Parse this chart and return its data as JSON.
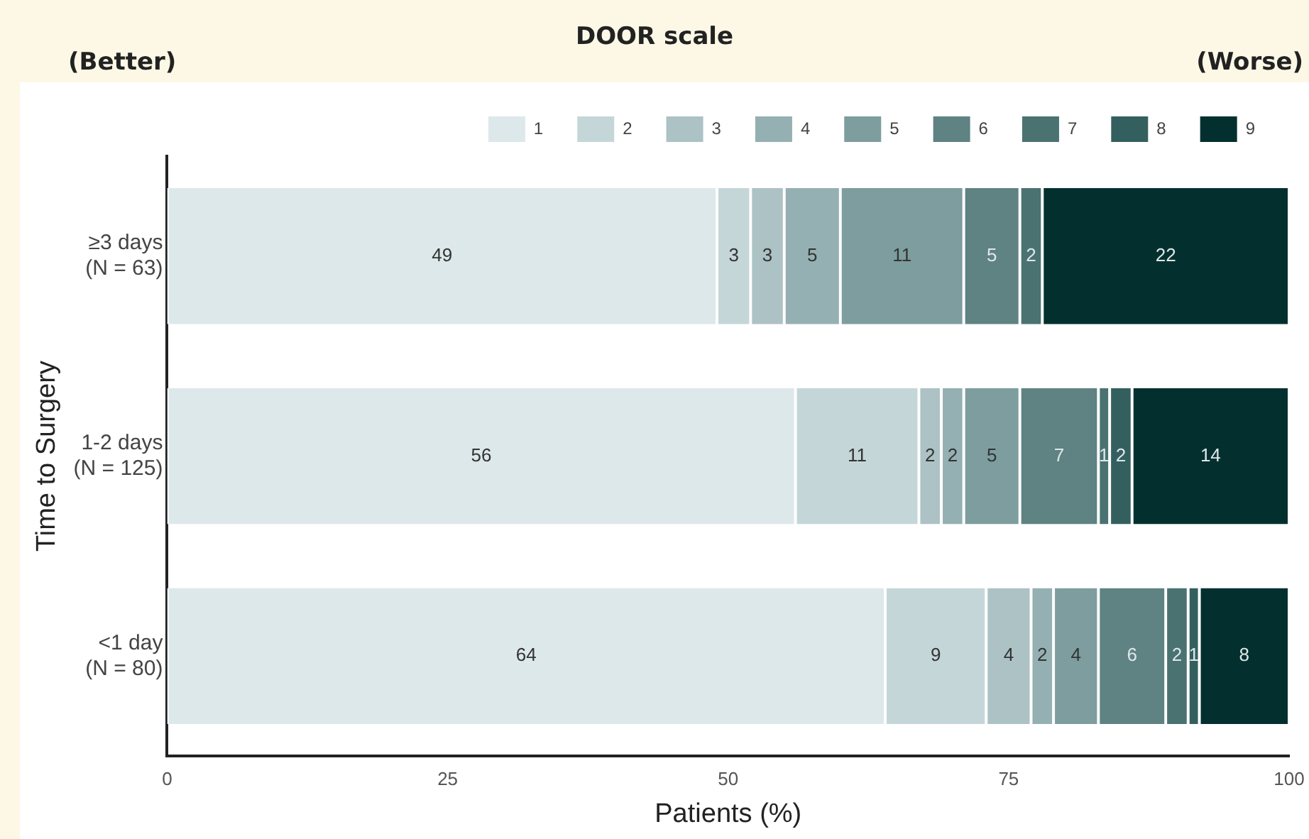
{
  "chart_data": {
    "type": "bar",
    "orientation": "horizontal",
    "stacked": true,
    "legend_title": "DOOR scale",
    "annotations": [
      "(Better)",
      "(Worse)"
    ],
    "categories": [
      "≥3 days\n(N = 63)",
      "1-2 days\n(N = 125)",
      "<1 day\n(N = 80)"
    ],
    "series": [
      {
        "name": "1",
        "color": "#dde8ea",
        "values": [
          49,
          56,
          64
        ],
        "value_labels": [
          "49",
          "56",
          "64"
        ]
      },
      {
        "name": "2",
        "color": "#c5d6d8",
        "values": [
          3,
          11,
          9
        ],
        "value_labels": [
          "3",
          "11",
          "9"
        ]
      },
      {
        "name": "3",
        "color": "#acc2c4",
        "values": [
          3,
          2,
          4
        ],
        "value_labels": [
          "3",
          "2",
          "4"
        ]
      },
      {
        "name": "4",
        "color": "#95b0b2",
        "values": [
          5,
          2,
          2
        ],
        "value_labels": [
          "5",
          "2",
          "2"
        ]
      },
      {
        "name": "5",
        "color": "#7d9d9e",
        "values": [
          11,
          5,
          4
        ],
        "value_labels": [
          "11",
          "5",
          "4"
        ]
      },
      {
        "name": "6",
        "color": "#5f8283",
        "values": [
          5,
          7,
          6
        ],
        "value_labels": [
          "5",
          "7",
          "6"
        ]
      },
      {
        "name": "7",
        "color": "#4a7271",
        "values": [
          2,
          1,
          2
        ],
        "value_labels": [
          "2",
          "1",
          "2"
        ]
      },
      {
        "name": "8",
        "color": "#33605f",
        "values": [
          0,
          2,
          1
        ],
        "value_labels": [
          null,
          "2",
          "1"
        ]
      },
      {
        "name": "9",
        "color": "#03302f",
        "values": [
          22,
          14,
          8
        ],
        "value_labels": [
          "22",
          "14",
          "8"
        ]
      }
    ],
    "xlim": [
      0,
      100
    ],
    "xticks": [
      0,
      25,
      50,
      75,
      100
    ],
    "xlabel": "Patients (%)",
    "ylabel": "Time to Surgery",
    "grid": false,
    "legend": "top"
  }
}
